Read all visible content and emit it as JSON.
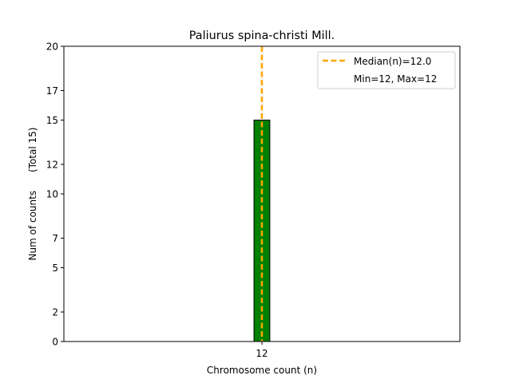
{
  "chart_data": {
    "type": "bar",
    "title": "Paliurus spina-christi Mill.",
    "xlabel": "Chromosome count (n)",
    "ylabel": "Num of counts      (Total 15)",
    "categories": [
      "12"
    ],
    "values": [
      15
    ],
    "xlim": [
      9.5,
      14.5
    ],
    "ylim": [
      0,
      20
    ],
    "yticks": [
      0,
      2,
      5,
      7,
      10,
      12,
      15,
      17,
      20
    ],
    "xticks": [
      12
    ],
    "median": 12.0,
    "legend": {
      "placement": "top-right",
      "entries": [
        "Median(n)=12.0",
        "Min=12, Max=12"
      ]
    },
    "colors": {
      "bar": "#008000",
      "bar_edge": "#000000",
      "median_line": "#FFA500"
    },
    "grid": false
  }
}
